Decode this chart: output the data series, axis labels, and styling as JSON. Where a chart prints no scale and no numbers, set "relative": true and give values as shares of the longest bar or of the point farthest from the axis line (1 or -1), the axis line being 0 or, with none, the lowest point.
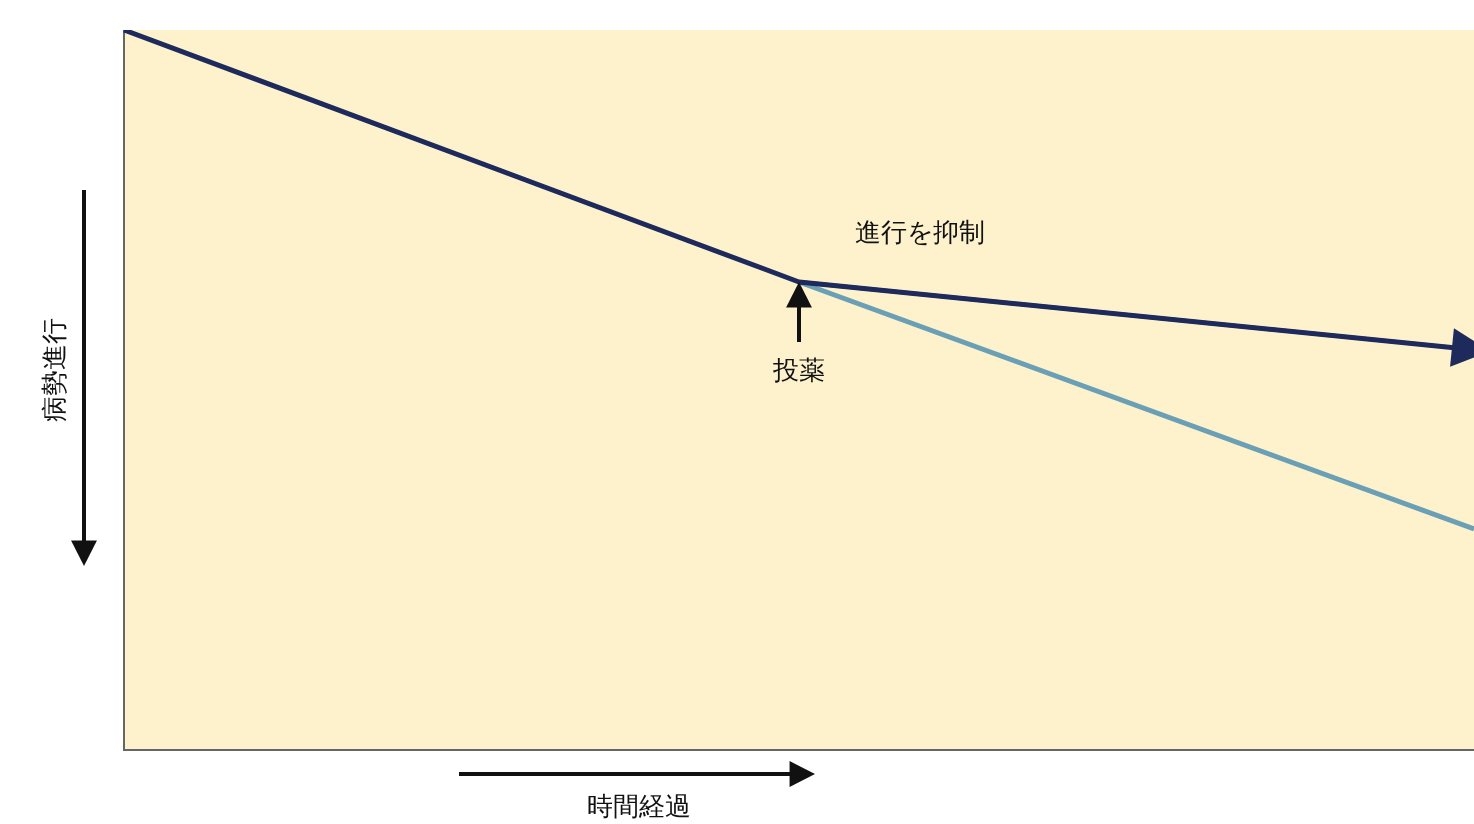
{
  "chart_data": {
    "type": "line",
    "relative": true,
    "xlabel": "時間経過",
    "ylabel": "病勢進行",
    "categories": [
      null,
      null,
      null
    ],
    "series": [
      {
        "color": "#1f2a5c",
        "values": [
          1,
          0.65,
          0.556
        ]
      },
      {
        "color": "#6a9fb5",
        "values": [
          null,
          0.65,
          0.307
        ]
      }
    ],
    "annotations": [
      "進行を抑制",
      "投薬"
    ],
    "legend": false,
    "marker": "none",
    "line_style": "solid"
  }
}
